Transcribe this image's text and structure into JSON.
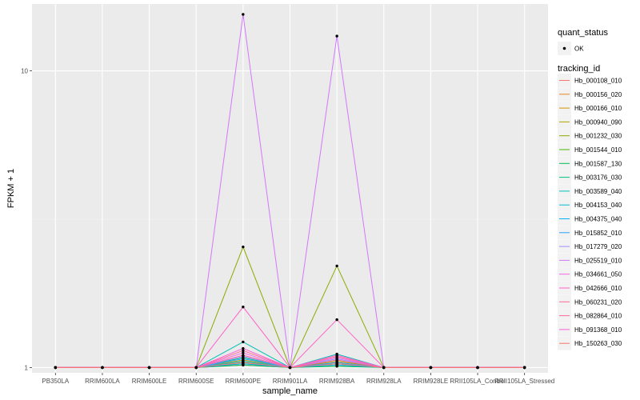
{
  "chart_data": {
    "type": "line",
    "xlabel": "sample_name",
    "ylabel": "FPKM + 1",
    "y_scale": "log10",
    "ylim": [
      0.96,
      16.8
    ],
    "y_ticks": [
      1,
      10
    ],
    "y_tick_labels": [
      "1",
      "10"
    ],
    "grid": true,
    "legend_position": "right",
    "background": "#ebebeb",
    "categories": [
      "PB350LA",
      "RRIM600LA",
      "RRIM600LE",
      "RRIM600SE",
      "RRIM600PE",
      "RRIM901LA",
      "RRIM928BA",
      "RRIM928LA",
      "RRIM928LE",
      "RRII105LA_Control",
      "RRII105LA_Stressed"
    ],
    "quant_status_legend": {
      "title": "quant_status",
      "labels": [
        "OK"
      ]
    },
    "tracking_legend_title": "tracking_id",
    "series": [
      {
        "name": "Hb_000108_010",
        "color": "#F8766D",
        "values": [
          1,
          1,
          1,
          1,
          1.02,
          1,
          1.02,
          1,
          1,
          1,
          1
        ]
      },
      {
        "name": "Hb_000156_020",
        "color": "#E7851E",
        "values": [
          1,
          1,
          1,
          1,
          1.05,
          1,
          1.04,
          1,
          1,
          1,
          1
        ]
      },
      {
        "name": "Hb_000166_010",
        "color": "#D09400",
        "values": [
          1,
          1,
          1,
          1,
          1.03,
          1,
          1.02,
          1,
          1,
          1,
          1
        ]
      },
      {
        "name": "Hb_000940_090",
        "color": "#B2A100",
        "values": [
          1,
          1,
          1,
          1,
          1.06,
          1,
          1.05,
          1,
          1,
          1,
          1
        ]
      },
      {
        "name": "Hb_001232_030",
        "color": "#89AC00",
        "values": [
          1,
          1,
          1,
          1,
          2.55,
          1,
          2.2,
          1,
          1,
          1,
          1
        ]
      },
      {
        "name": "Hb_001544_010",
        "color": "#45B500",
        "values": [
          1,
          1,
          1,
          1,
          1.04,
          1,
          1.03,
          1,
          1,
          1,
          1
        ]
      },
      {
        "name": "Hb_001587_130",
        "color": "#00BC51",
        "values": [
          1,
          1,
          1,
          1,
          1.02,
          1,
          1.01,
          1,
          1,
          1,
          1
        ]
      },
      {
        "name": "Hb_003176_030",
        "color": "#00C087",
        "values": [
          1,
          1,
          1,
          1,
          1.08,
          1,
          1.06,
          1,
          1,
          1,
          1
        ]
      },
      {
        "name": "Hb_003589_040",
        "color": "#00C0B2",
        "values": [
          1,
          1,
          1,
          1,
          1.22,
          1,
          1.11,
          1,
          1,
          1,
          1
        ]
      },
      {
        "name": "Hb_004153_040",
        "color": "#00BCD6",
        "values": [
          1,
          1,
          1,
          1,
          1.05,
          1,
          1.03,
          1,
          1,
          1,
          1
        ]
      },
      {
        "name": "Hb_004375_040",
        "color": "#00B3F2",
        "values": [
          1,
          1,
          1,
          1,
          1.03,
          1,
          1.02,
          1,
          1,
          1,
          1
        ]
      },
      {
        "name": "Hb_015852_010",
        "color": "#29A3FF",
        "values": [
          1,
          1,
          1,
          1,
          1.07,
          1,
          1.04,
          1,
          1,
          1,
          1
        ]
      },
      {
        "name": "Hb_017279_020",
        "color": "#9C8DFF",
        "values": [
          1,
          1,
          1,
          1,
          1.09,
          1,
          1.07,
          1,
          1,
          1,
          1
        ]
      },
      {
        "name": "Hb_025519_010",
        "color": "#D277FF",
        "values": [
          1,
          1,
          1,
          1,
          15.5,
          1,
          13.1,
          1,
          1,
          1,
          1
        ]
      },
      {
        "name": "Hb_034661_050",
        "color": "#F166E8",
        "values": [
          1,
          1,
          1,
          1,
          1.12,
          1,
          1.08,
          1,
          1,
          1,
          1
        ]
      },
      {
        "name": "Hb_042666_010",
        "color": "#FF61C7",
        "values": [
          1,
          1,
          1,
          1,
          1.6,
          1,
          1.45,
          1,
          1,
          1,
          1
        ]
      },
      {
        "name": "Hb_060231_020",
        "color": "#FF6C91",
        "values": [
          1,
          1,
          1,
          1,
          1.14,
          1,
          1.09,
          1,
          1,
          1,
          1
        ]
      },
      {
        "name": "Hb_082864_010",
        "color": "#FF6A98",
        "values": [
          1,
          1,
          1,
          1,
          1.1,
          1,
          1.06,
          1,
          1,
          1,
          1
        ]
      },
      {
        "name": "Hb_091368_010",
        "color": "#FB61D7",
        "values": [
          1,
          1,
          1,
          1,
          1.16,
          1,
          1.1,
          1,
          1,
          1,
          1
        ]
      },
      {
        "name": "Hb_150263_030",
        "color": "#F8766D",
        "values": [
          1,
          1,
          1,
          1,
          1.04,
          1,
          1.03,
          1,
          1,
          1,
          1
        ]
      }
    ]
  }
}
